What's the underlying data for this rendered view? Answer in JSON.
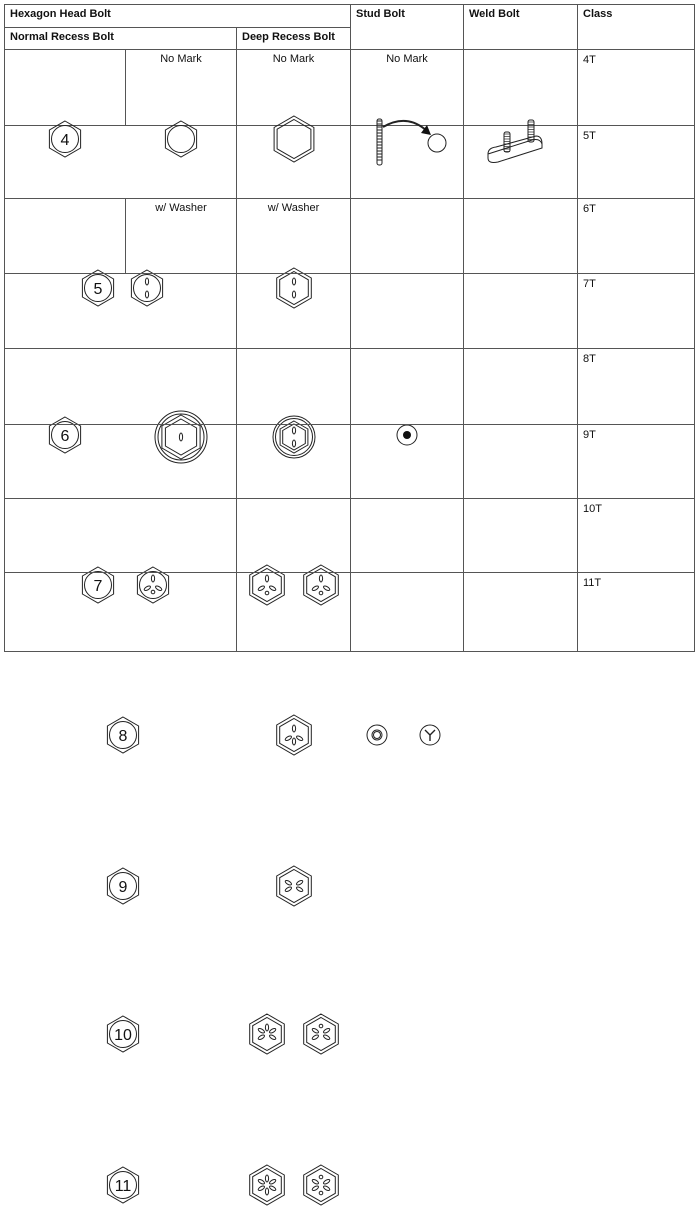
{
  "header": {
    "hexagon_head_bolt": "Hexagon Head Bolt",
    "normal_recess_bolt": "Normal Recess Bolt",
    "deep_recess_bolt": "Deep Recess Bolt",
    "stud_bolt": "Stud Bolt",
    "weld_bolt": "Weld Bolt",
    "class": "Class"
  },
  "labels": {
    "no_mark": "No Mark",
    "with_washer": "w/ Washer"
  },
  "rows": [
    {
      "class": "4T",
      "head_number": "4"
    },
    {
      "class": "5T",
      "head_number": "5"
    },
    {
      "class": "6T",
      "head_number": "6"
    },
    {
      "class": "7T",
      "head_number": "7"
    },
    {
      "class": "8T",
      "head_number": "8"
    },
    {
      "class": "9T",
      "head_number": "9"
    },
    {
      "class": "10T",
      "head_number": "10"
    },
    {
      "class": "11T",
      "head_number": "11"
    }
  ],
  "icons": {
    "normal_recess": [
      "numbered-hex-bolt-icon",
      "plain-hex-bolt-icon",
      "two-slit-hex-bolt-icon",
      "washer-one-slit-bolt-icon",
      "three-slit-dot-hex-bolt-icon"
    ],
    "deep_recess": [
      "plain-deep-recess-bolt-icon",
      "two-slit-deep-recess-bolt-icon",
      "washer-deep-recess-bolt-icon",
      "three-slit-dot-deep-recess-bolt-icon",
      "four-slit-deep-recess-bolt-icon",
      "x-slit-deep-recess-bolt-icon",
      "five-slit-deep-recess-bolt-icon",
      "x-slit-dot-deep-recess-bolt-icon",
      "six-slit-deep-recess-bolt-icon",
      "x-slit-two-dot-deep-recess-bolt-icon"
    ],
    "stud": [
      "stud-bolt-end-arrow-icon",
      "stud-dot-mark-icon",
      "stud-ring-mark-icon",
      "stud-y-mark-icon"
    ],
    "weld": [
      "weld-bolt-icon"
    ]
  }
}
